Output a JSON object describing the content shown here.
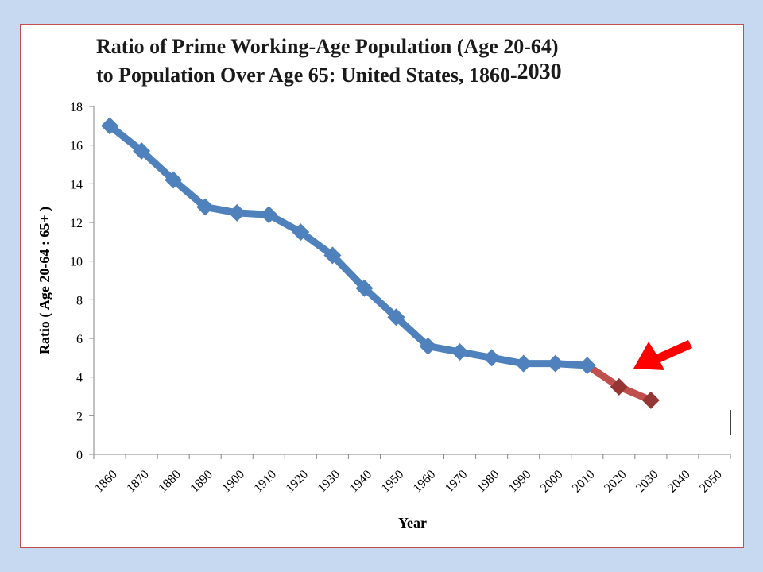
{
  "title_line1": "Ratio of Prime Working-Age Population (Age 20-64)",
  "title_line2": "to Population Over Age 65: United States, 1860-",
  "title_line2_tail": "2030",
  "colors": {
    "background": "#c6d9f1",
    "historical": "#4f81bd",
    "projected": "#c0504d",
    "projected_marker": "#963634",
    "arrow": "#ff0000"
  },
  "chart_data": {
    "type": "line",
    "xlabel": "Year",
    "ylabel": "Ratio ( Age 20-64 : 65+ )",
    "ylim": [
      0,
      18
    ],
    "yticks": [
      "0",
      "2",
      "4",
      "6",
      "8",
      "10",
      "12",
      "14",
      "16",
      "18"
    ],
    "categories": [
      "1860",
      "1870",
      "1880",
      "1890",
      "1900",
      "1910",
      "1920",
      "1930",
      "1940",
      "1950",
      "1960",
      "1970",
      "1980",
      "1990",
      "2000",
      "2010",
      "2020",
      "2030",
      "2040",
      "2050"
    ],
    "grid": false,
    "legend": "none",
    "series": [
      {
        "x": [
          "1860",
          "1870",
          "1880",
          "1890",
          "1900",
          "1910",
          "1920",
          "1930",
          "1940",
          "1950",
          "1960",
          "1970",
          "1980",
          "1990",
          "2000",
          "2010"
        ],
        "values": [
          17.0,
          15.7,
          14.2,
          12.8,
          12.5,
          12.4,
          11.5,
          10.3,
          8.6,
          7.1,
          5.6,
          5.3,
          5.0,
          4.7,
          4.7,
          4.6
        ]
      },
      {
        "x": [
          "2010",
          "2020",
          "2030"
        ],
        "values": [
          4.6,
          3.5,
          2.8
        ]
      }
    ]
  }
}
